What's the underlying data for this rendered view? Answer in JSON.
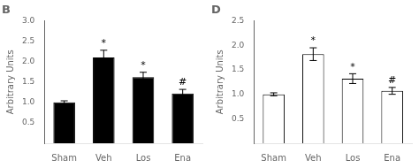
{
  "chart_data": [
    {
      "type": "bar",
      "title": "B",
      "categories": [
        "Sham",
        "Veh",
        "Los",
        "Ena"
      ],
      "values": [
        1.0,
        2.1,
        1.62,
        1.22
      ],
      "errors": [
        0.04,
        0.18,
        0.12,
        0.1
      ],
      "annotations": [
        null,
        "*",
        "*",
        "#"
      ],
      "color": "black",
      "ylabel": "Arbitrary Units",
      "ylim": [
        0,
        3.0
      ],
      "yticks": [
        0.5,
        {
          "value": 1.0,
          "label": "1.0"
        },
        1.5,
        {
          "value": 2.0,
          "label": "2.0"
        },
        2.5,
        {
          "value": 3.0,
          "label": "3.0"
        }
      ],
      "grid": false
    },
    {
      "type": "bar",
      "title": "D",
      "categories": [
        "Sham",
        "Veh",
        "Los",
        "Ena"
      ],
      "values": [
        1.0,
        1.82,
        1.32,
        1.07
      ],
      "errors": [
        0.03,
        0.13,
        0.1,
        0.07
      ],
      "annotations": [
        null,
        "*",
        "*",
        "#"
      ],
      "color": "white",
      "ylabel": "Arbitrary Units",
      "ylim": [
        0,
        2.5
      ],
      "yticks": [
        0.5,
        {
          "value": 1.0,
          "label": "1.0"
        },
        1.5,
        {
          "value": 2.0,
          "label": "2.0"
        },
        2.5
      ],
      "grid": false
    }
  ]
}
